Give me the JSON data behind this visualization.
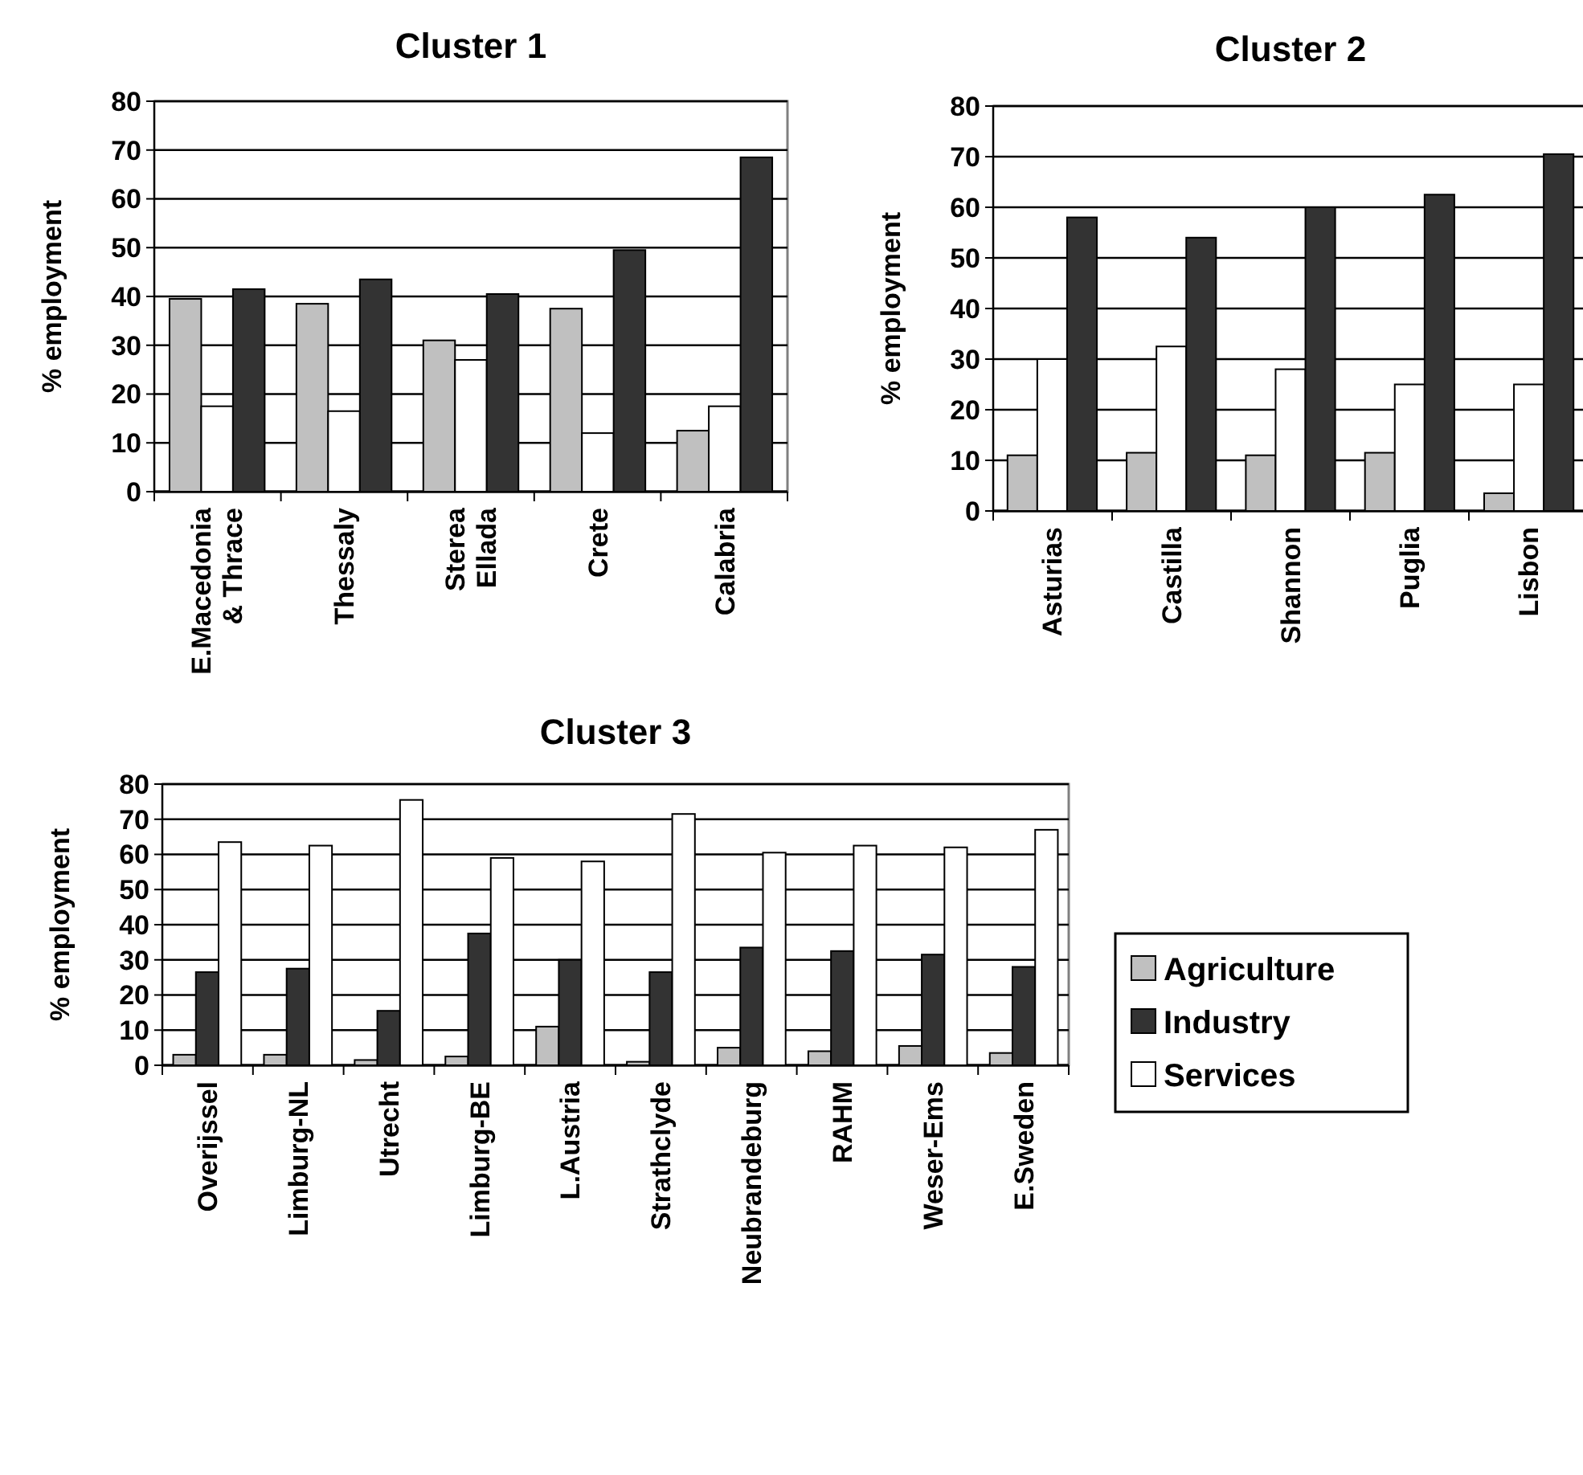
{
  "chart_data": [
    {
      "type": "bar",
      "title": "Cluster 1",
      "ylabel": "% employment",
      "categories": [
        "E.Macedonia & Thrace",
        "Thessaly",
        "Sterea Ellada",
        "Crete",
        "Calabria"
      ],
      "ylim": [
        0,
        80
      ],
      "yticks": [
        0,
        10,
        20,
        30,
        40,
        50,
        60,
        70,
        80
      ],
      "grid": "y",
      "legend": false,
      "series": [
        {
          "color": "#c0c0c0",
          "values": [
            39.5,
            38.5,
            31,
            37.5,
            12.5
          ]
        },
        {
          "color": "#ffffff",
          "values": [
            17.5,
            16.5,
            27,
            12,
            17.5
          ]
        },
        {
          "color": "#333333",
          "values": [
            41.5,
            43.5,
            40.5,
            49.5,
            68.5
          ]
        }
      ]
    },
    {
      "type": "bar",
      "title": "Cluster 2",
      "ylabel": "% employment",
      "categories": [
        "Asturias",
        "Castilla",
        "Shannon",
        "Puglia",
        "Lisbon"
      ],
      "ylim": [
        0,
        80
      ],
      "yticks": [
        0,
        10,
        20,
        30,
        40,
        50,
        60,
        70,
        80
      ],
      "grid": "y",
      "legend": false,
      "series": [
        {
          "color": "#c0c0c0",
          "values": [
            11,
            11.5,
            11,
            11.5,
            3.5
          ]
        },
        {
          "color": "#ffffff",
          "values": [
            30,
            32.5,
            28,
            25,
            25
          ]
        },
        {
          "color": "#333333",
          "values": [
            58,
            54,
            60,
            62.5,
            70.5
          ]
        }
      ]
    },
    {
      "type": "bar",
      "title": "Cluster 3",
      "ylabel": "% employment",
      "categories": [
        "Overijssel",
        "Limburg-NL",
        "Utrecht",
        "Limburg-BE",
        "L.Austria",
        "Strathclyde",
        "Neubrandeburg",
        "RAHM",
        "Weser-Ems",
        "E.Sweden"
      ],
      "ylim": [
        0,
        80
      ],
      "yticks": [
        0,
        10,
        20,
        30,
        40,
        50,
        60,
        70,
        80
      ],
      "grid": "y",
      "legend": "right",
      "series": [
        {
          "name": "Agriculture",
          "color": "#c0c0c0",
          "values": [
            3,
            3,
            1.5,
            2.5,
            11,
            1,
            5,
            4,
            5.5,
            3.5
          ]
        },
        {
          "name": "Industry",
          "color": "#333333",
          "values": [
            26.5,
            27.5,
            15.5,
            37.5,
            30,
            26.5,
            33.5,
            32.5,
            31.5,
            28
          ]
        },
        {
          "name": "Services",
          "color": "#ffffff",
          "values": [
            63.5,
            62.5,
            75.5,
            59,
            58,
            71.5,
            60.5,
            62.5,
            62,
            67
          ]
        }
      ]
    }
  ]
}
